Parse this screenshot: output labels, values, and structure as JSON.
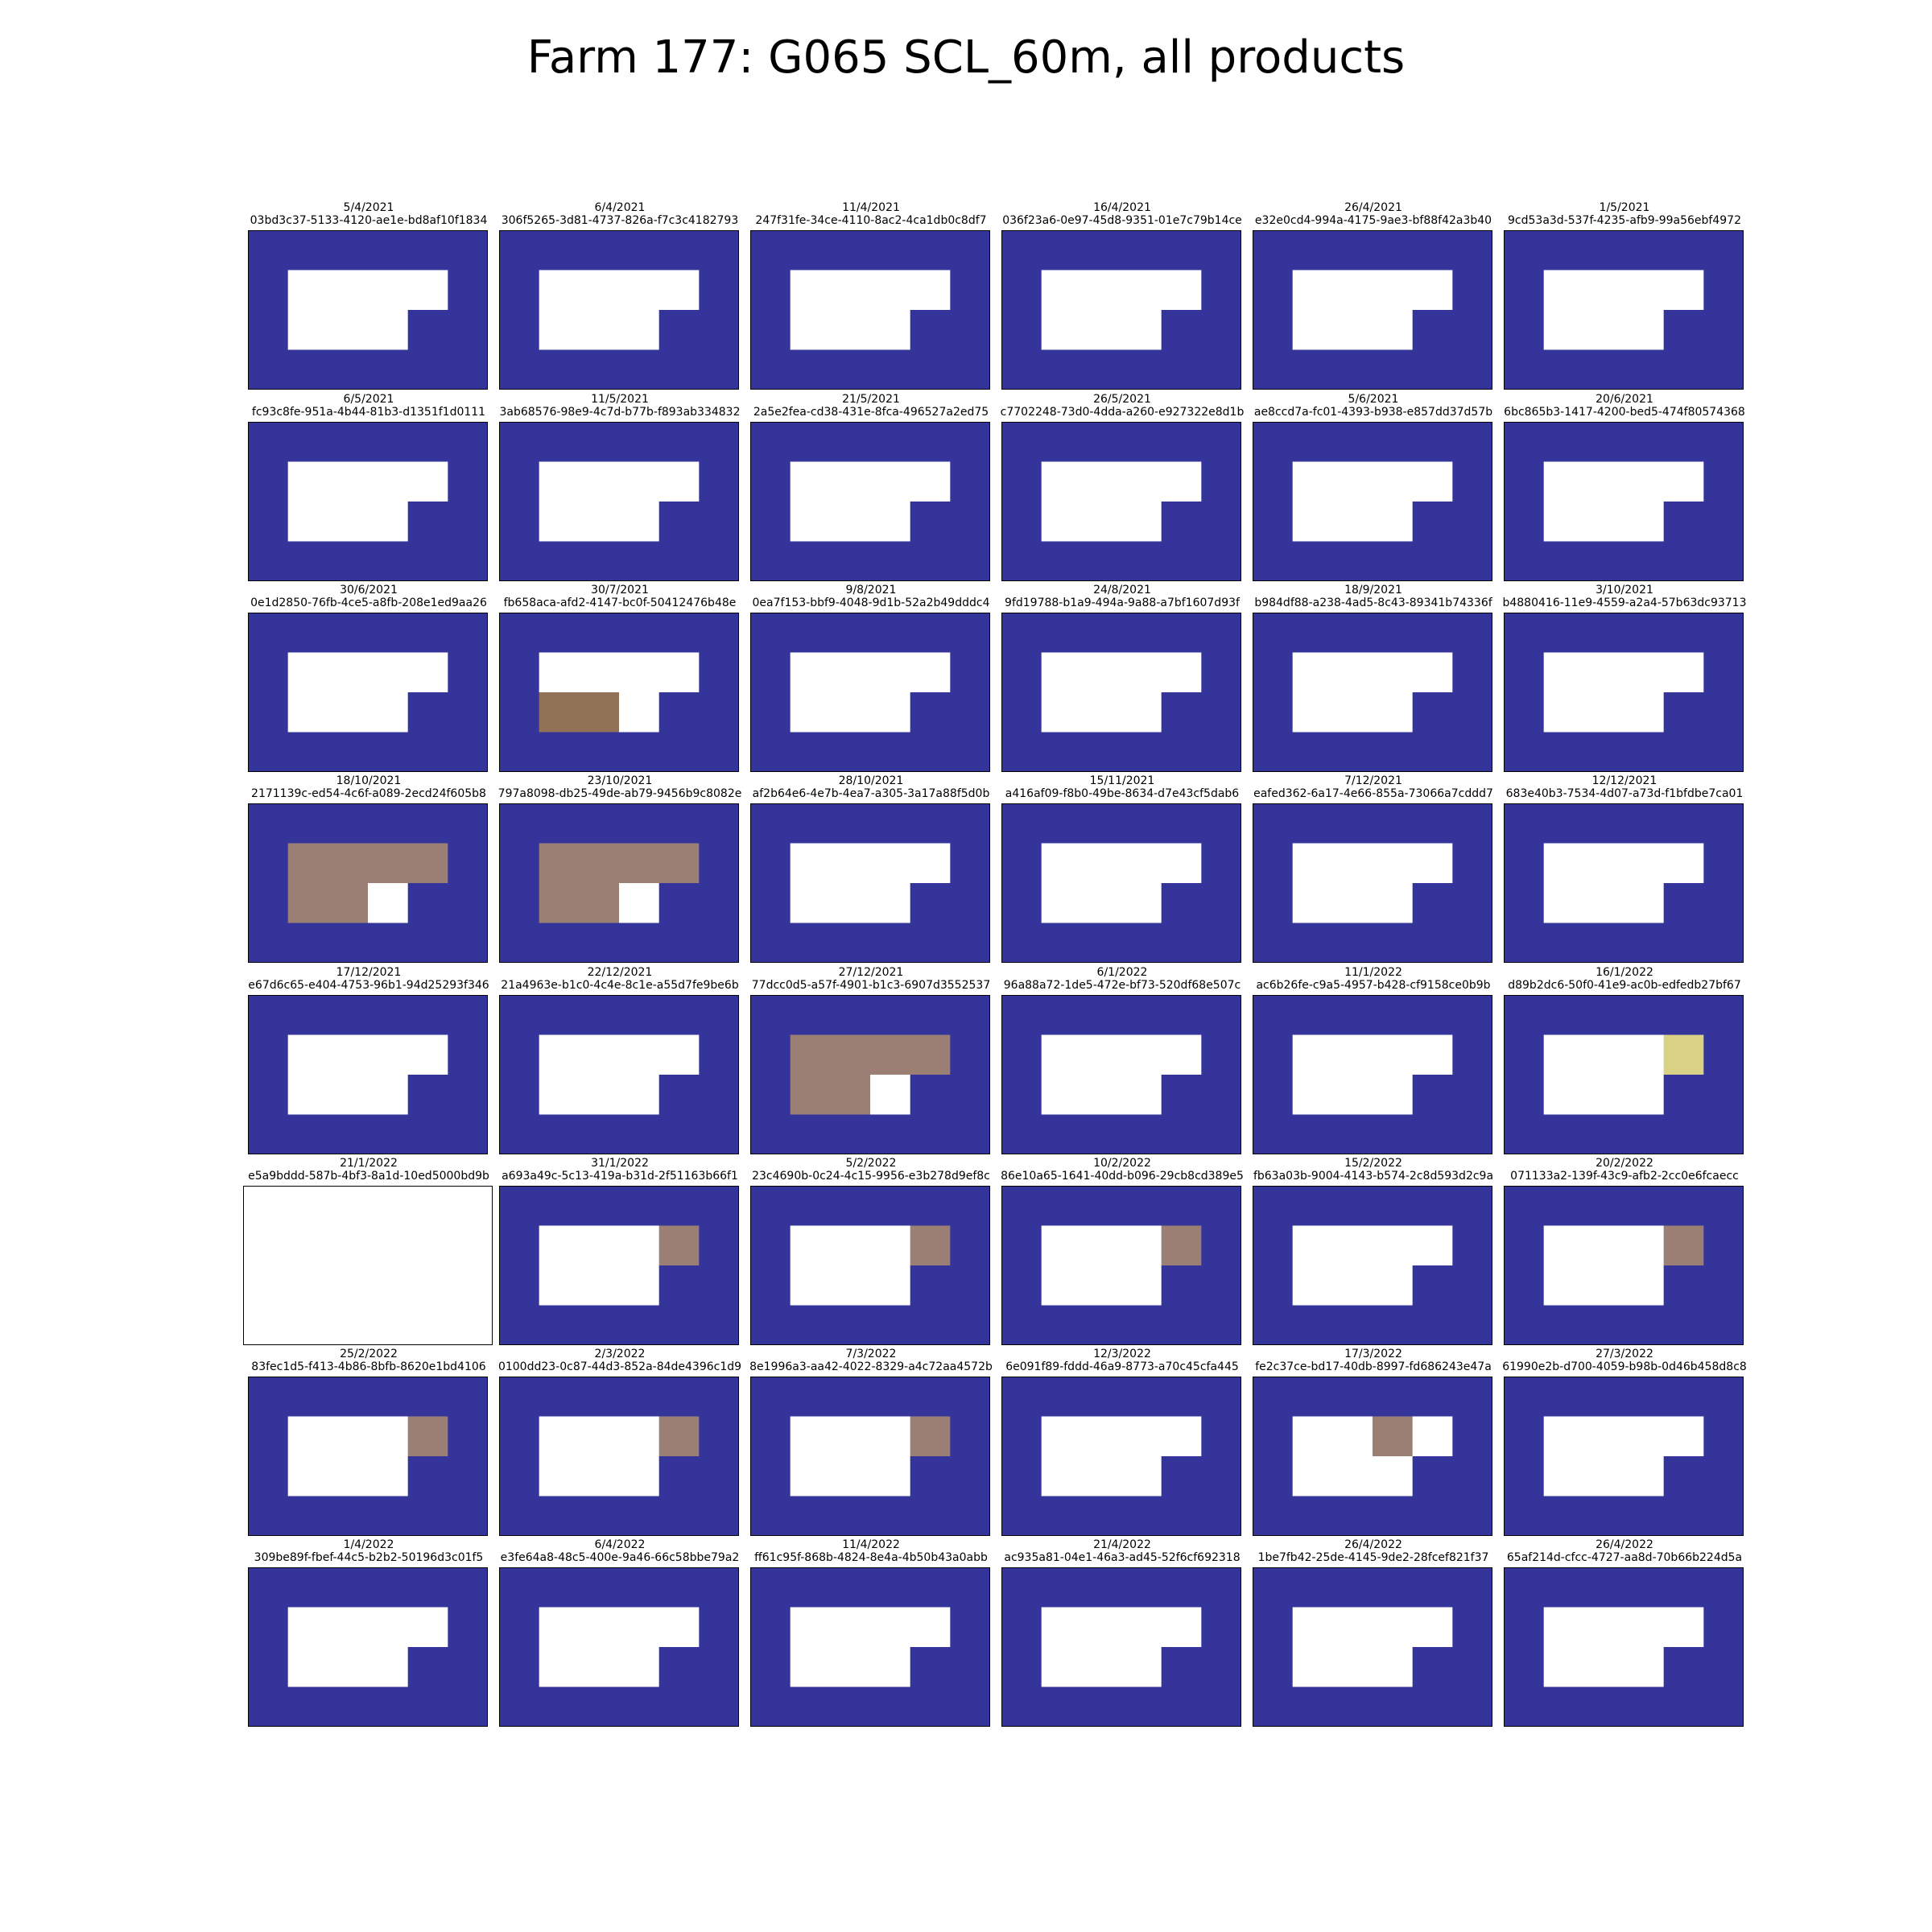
{
  "title": "Farm 177: G065 SCL_60m, all products",
  "colors": {
    "background": "#34349a",
    "field": "#ffffff",
    "brown": "#917257",
    "taupe": "#9c7f74",
    "yellow": "#d9d186",
    "frame": "#000000"
  },
  "chart_data": {
    "type": "heatmap",
    "grid": {
      "rows": 8,
      "cols": 6
    },
    "pixel_grid": {
      "rows": 4,
      "cols": 6
    },
    "classes": {
      "B": "background",
      "W": "field",
      "N": "brown",
      "T": "taupe",
      "Y": "yellow",
      "E": "empty"
    },
    "panels": [
      {
        "date": "5/4/2021",
        "id": "03bd3c37-5133-4120-ae1e-bd8af10f1834",
        "mask": [
          "BBBBBB",
          "BWWWWB",
          "BWWWBB",
          "BBBBBB"
        ]
      },
      {
        "date": "6/4/2021",
        "id": "306f5265-3d81-4737-826a-f7c3c4182793",
        "mask": [
          "BBBBBB",
          "BWWWWB",
          "BWWWBB",
          "BBBBBB"
        ]
      },
      {
        "date": "11/4/2021",
        "id": "247f31fe-34ce-4110-8ac2-4ca1db0c8df7",
        "mask": [
          "BBBBBB",
          "BWWWWB",
          "BWWWBB",
          "BBBBBB"
        ]
      },
      {
        "date": "16/4/2021",
        "id": "036f23a6-0e97-45d8-9351-01e7c79b14ce",
        "mask": [
          "BBBBBB",
          "BWWWWB",
          "BWWWBB",
          "BBBBBB"
        ]
      },
      {
        "date": "26/4/2021",
        "id": "e32e0cd4-994a-4175-9ae3-bf88f42a3b40",
        "mask": [
          "BBBBBB",
          "BWWWWB",
          "BWWWBB",
          "BBBBBB"
        ]
      },
      {
        "date": "1/5/2021",
        "id": "9cd53a3d-537f-4235-afb9-99a56ebf4972",
        "mask": [
          "BBBBBB",
          "BWWWWB",
          "BWWWBB",
          "BBBBBB"
        ]
      },
      {
        "date": "6/5/2021",
        "id": "fc93c8fe-951a-4b44-81b3-d1351f1d0111",
        "mask": [
          "BBBBBB",
          "BWWWWB",
          "BWWWBB",
          "BBBBBB"
        ]
      },
      {
        "date": "11/5/2021",
        "id": "3ab68576-98e9-4c7d-b77b-f893ab334832",
        "mask": [
          "BBBBBB",
          "BWWWWB",
          "BWWWBB",
          "BBBBBB"
        ]
      },
      {
        "date": "21/5/2021",
        "id": "2a5e2fea-cd38-431e-8fca-496527a2ed75",
        "mask": [
          "BBBBBB",
          "BWWWWB",
          "BWWWBB",
          "BBBBBB"
        ]
      },
      {
        "date": "26/5/2021",
        "id": "c7702248-73d0-4dda-a260-e927322e8d1b",
        "mask": [
          "BBBBBB",
          "BWWWWB",
          "BWWWBB",
          "BBBBBB"
        ]
      },
      {
        "date": "5/6/2021",
        "id": "ae8ccd7a-fc01-4393-b938-e857dd37d57b",
        "mask": [
          "BBBBBB",
          "BWWWWB",
          "BWWWBB",
          "BBBBBB"
        ]
      },
      {
        "date": "20/6/2021",
        "id": "6bc865b3-1417-4200-bed5-474f80574368",
        "mask": [
          "BBBBBB",
          "BWWWWB",
          "BWWWBB",
          "BBBBBB"
        ]
      },
      {
        "date": "30/6/2021",
        "id": "0e1d2850-76fb-4ce5-a8fb-208e1ed9aa26",
        "mask": [
          "BBBBBB",
          "BWWWWB",
          "BWWWBB",
          "BBBBBB"
        ]
      },
      {
        "date": "30/7/2021",
        "id": "fb658aca-afd2-4147-bc0f-50412476b48e",
        "mask": [
          "BBBBBB",
          "BWWWWB",
          "BNNWBB",
          "BBBBBB"
        ]
      },
      {
        "date": "9/8/2021",
        "id": "0ea7f153-bbf9-4048-9d1b-52a2b49dddc4",
        "mask": [
          "BBBBBB",
          "BWWWWB",
          "BWWWBB",
          "BBBBBB"
        ]
      },
      {
        "date": "24/8/2021",
        "id": "9fd19788-b1a9-494a-9a88-a7bf1607d93f",
        "mask": [
          "BBBBBB",
          "BWWWWB",
          "BWWWBB",
          "BBBBBB"
        ]
      },
      {
        "date": "18/9/2021",
        "id": "b984df88-a238-4ad5-8c43-89341b74336f",
        "mask": [
          "BBBBBB",
          "BWWWWB",
          "BWWWBB",
          "BBBBBB"
        ]
      },
      {
        "date": "3/10/2021",
        "id": "b4880416-11e9-4559-a2a4-57b63dc93713",
        "mask": [
          "BBBBBB",
          "BWWWWB",
          "BWWWBB",
          "BBBBBB"
        ]
      },
      {
        "date": "18/10/2021",
        "id": "2171139c-ed54-4c6f-a089-2ecd24f605b8",
        "mask": [
          "BBBBBB",
          "BTTTTB",
          "BTTWBB",
          "BBBBBB"
        ]
      },
      {
        "date": "23/10/2021",
        "id": "797a8098-db25-49de-ab79-9456b9c8082e",
        "mask": [
          "BBBBBB",
          "BTTTTB",
          "BTTWBB",
          "BBBBBB"
        ]
      },
      {
        "date": "28/10/2021",
        "id": "af2b64e6-4e7b-4ea7-a305-3a17a88f5d0b",
        "mask": [
          "BBBBBB",
          "BWWWWB",
          "BWWWBB",
          "BBBBBB"
        ]
      },
      {
        "date": "15/11/2021",
        "id": "a416af09-f8b0-49be-8634-d7e43cf5dab6",
        "mask": [
          "BBBBBB",
          "BWWWWB",
          "BWWWBB",
          "BBBBBB"
        ]
      },
      {
        "date": "7/12/2021",
        "id": "eafed362-6a17-4e66-855a-73066a7cddd7",
        "mask": [
          "BBBBBB",
          "BWWWWB",
          "BWWWBB",
          "BBBBBB"
        ]
      },
      {
        "date": "12/12/2021",
        "id": "683e40b3-7534-4d07-a73d-f1bfdbe7ca01",
        "mask": [
          "BBBBBB",
          "BWWWWB",
          "BWWWBB",
          "BBBBBB"
        ]
      },
      {
        "date": "17/12/2021",
        "id": "e67d6c65-e404-4753-96b1-94d25293f346",
        "mask": [
          "BBBBBB",
          "BWWWWB",
          "BWWWBB",
          "BBBBBB"
        ]
      },
      {
        "date": "22/12/2021",
        "id": "21a4963e-b1c0-4c4e-8c1e-a55d7fe9be6b",
        "mask": [
          "BBBBBB",
          "BWWWWB",
          "BWWWBB",
          "BBBBBB"
        ]
      },
      {
        "date": "27/12/2021",
        "id": "77dcc0d5-a57f-4901-b1c3-6907d3552537",
        "mask": [
          "BBBBBB",
          "BTTTTB",
          "BTTWBB",
          "BBBBBB"
        ]
      },
      {
        "date": "6/1/2022",
        "id": "96a88a72-1de5-472e-bf73-520df68e507c",
        "mask": [
          "BBBBBB",
          "BWWWWB",
          "BWWWBB",
          "BBBBBB"
        ]
      },
      {
        "date": "11/1/2022",
        "id": "ac6b26fe-c9a5-4957-b428-cf9158ce0b9b",
        "mask": [
          "BBBBBB",
          "BWWWWB",
          "BWWWBB",
          "BBBBBB"
        ]
      },
      {
        "date": "16/1/2022",
        "id": "d89b2dc6-50f0-41e9-ac0b-edfedb27bf67",
        "mask": [
          "BBBBBB",
          "BWWWYB",
          "BWWWBB",
          "BBBBBB"
        ]
      },
      {
        "date": "21/1/2022",
        "id": "e5a9bddd-587b-4bf3-8a1d-10ed5000bd9b",
        "mask": [
          "EEEEEE",
          "EEEEEE",
          "EEEEEE",
          "EEEEEE"
        ]
      },
      {
        "date": "31/1/2022",
        "id": "a693a49c-5c13-419a-b31d-2f51163b66f1",
        "mask": [
          "BBBBBB",
          "BWWWTB",
          "BWWWBB",
          "BBBBBB"
        ]
      },
      {
        "date": "5/2/2022",
        "id": "23c4690b-0c24-4c15-9956-e3b278d9ef8c",
        "mask": [
          "BBBBBB",
          "BWWWTB",
          "BWWWBB",
          "BBBBBB"
        ]
      },
      {
        "date": "10/2/2022",
        "id": "86e10a65-1641-40dd-b096-29cb8cd389e5",
        "mask": [
          "BBBBBB",
          "BWWWTB",
          "BWWWBB",
          "BBBBBB"
        ]
      },
      {
        "date": "15/2/2022",
        "id": "fb63a03b-9004-4143-b574-2c8d593d2c9a",
        "mask": [
          "BBBBBB",
          "BWWWWB",
          "BWWWBB",
          "BBBBBB"
        ]
      },
      {
        "date": "20/2/2022",
        "id": "071133a2-139f-43c9-afb2-2cc0e6fcaecc",
        "mask": [
          "BBBBBB",
          "BWWWTB",
          "BWWWBB",
          "BBBBBB"
        ]
      },
      {
        "date": "25/2/2022",
        "id": "83fec1d5-f413-4b86-8bfb-8620e1bd4106",
        "mask": [
          "BBBBBB",
          "BWWWTB",
          "BWWWBB",
          "BBBBBB"
        ]
      },
      {
        "date": "2/3/2022",
        "id": "0100dd23-0c87-44d3-852a-84de4396c1d9",
        "mask": [
          "BBBBBB",
          "BWWWTB",
          "BWWWBB",
          "BBBBBB"
        ]
      },
      {
        "date": "7/3/2022",
        "id": "8e1996a3-aa42-4022-8329-a4c72aa4572b",
        "mask": [
          "BBBBBB",
          "BWWWTB",
          "BWWWBB",
          "BBBBBB"
        ]
      },
      {
        "date": "12/3/2022",
        "id": "6e091f89-fddd-46a9-8773-a70c45cfa445",
        "mask": [
          "BBBBBB",
          "BWWWWB",
          "BWWWBB",
          "BBBBBB"
        ]
      },
      {
        "date": "17/3/2022",
        "id": "fe2c37ce-bd17-40db-8997-fd686243e47a",
        "mask": [
          "BBBBBB",
          "BWWTWB",
          "BWWWBB",
          "BBBBBB"
        ]
      },
      {
        "date": "27/3/2022",
        "id": "61990e2b-d700-4059-b98b-0d46b458d8c8",
        "mask": [
          "BBBBBB",
          "BWWWWB",
          "BWWWBB",
          "BBBBBB"
        ]
      },
      {
        "date": "1/4/2022",
        "id": "309be89f-fbef-44c5-b2b2-50196d3c01f5",
        "mask": [
          "BBBBBB",
          "BWWWWB",
          "BWWWBB",
          "BBBBBB"
        ]
      },
      {
        "date": "6/4/2022",
        "id": "e3fe64a8-48c5-400e-9a46-66c58bbe79a2",
        "mask": [
          "BBBBBB",
          "BWWWWB",
          "BWWWBB",
          "BBBBBB"
        ]
      },
      {
        "date": "11/4/2022",
        "id": "ff61c95f-868b-4824-8e4a-4b50b43a0abb",
        "mask": [
          "BBBBBB",
          "BWWWWB",
          "BWWWBB",
          "BBBBBB"
        ]
      },
      {
        "date": "21/4/2022",
        "id": "ac935a81-04e1-46a3-ad45-52f6cf692318",
        "mask": [
          "BBBBBB",
          "BWWWWB",
          "BWWWBB",
          "BBBBBB"
        ]
      },
      {
        "date": "26/4/2022",
        "id": "1be7fb42-25de-4145-9de2-28fcef821f37",
        "mask": [
          "BBBBBB",
          "BWWWWB",
          "BWWWBB",
          "BBBBBB"
        ]
      },
      {
        "date": "26/4/2022",
        "id": "65af214d-cfcc-4727-aa8d-70b66b224d5a",
        "mask": [
          "BBBBBB",
          "BWWWWB",
          "BWWWBB",
          "BBBBBB"
        ]
      }
    ]
  }
}
